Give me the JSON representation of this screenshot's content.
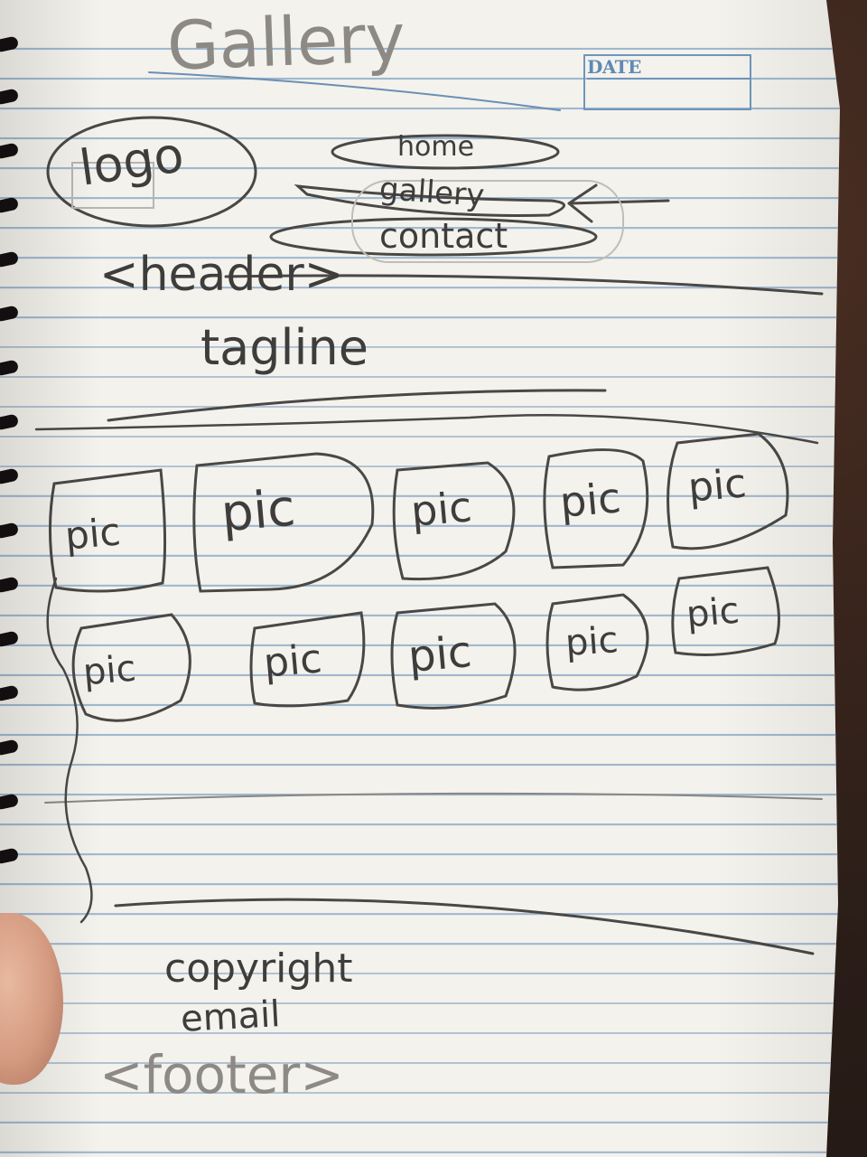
{
  "page_heading": "Gallery",
  "date_label": "DATE",
  "header": {
    "logo": "logo",
    "nav": [
      "home",
      "gallery",
      "contact"
    ],
    "label": "<header>",
    "tagline": "tagline"
  },
  "gallery": {
    "row1": [
      "pic",
      "pic",
      "pic",
      "pic",
      "pic"
    ],
    "row2": [
      "pic",
      "pic",
      "pic",
      "pic",
      "pic"
    ]
  },
  "footer": {
    "line1": "copyright",
    "line2": "email",
    "label": "<footer>"
  },
  "colors": {
    "paper": "#f4f2ec",
    "rule_blue": "#9fb8cf",
    "pencil": "#3f3d3c",
    "date_blue": "#5f8ab5"
  }
}
